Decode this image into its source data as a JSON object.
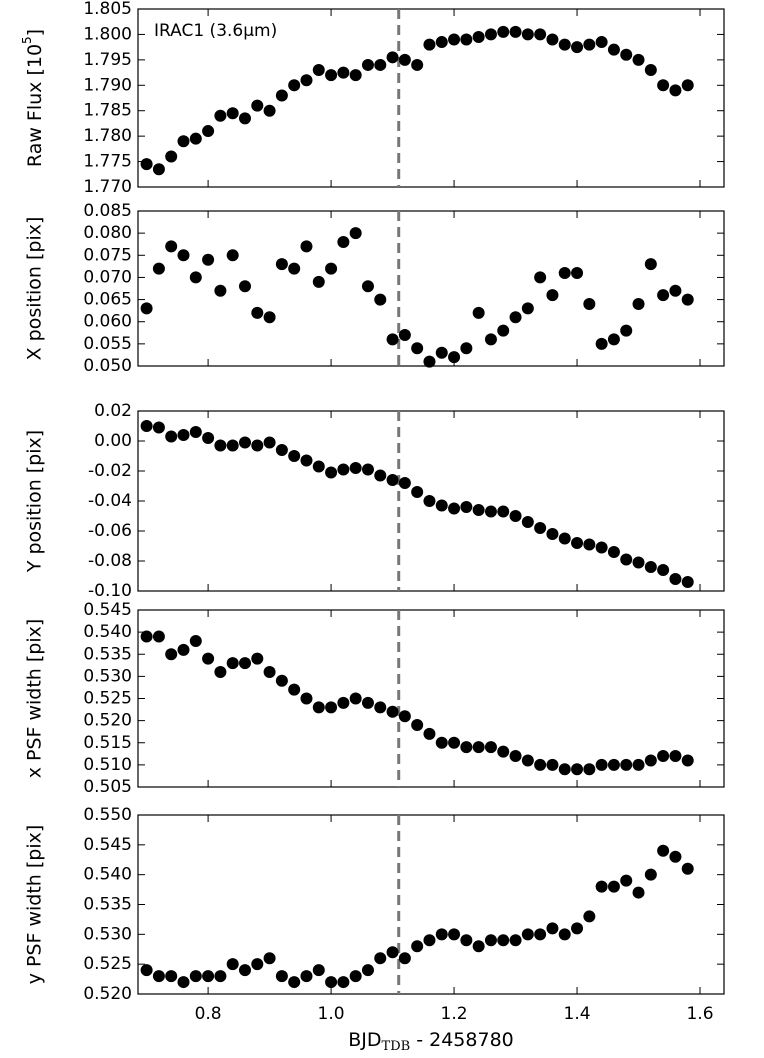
{
  "chart_data": [
    {
      "type": "scatter",
      "ylabel": {
        "text": "Raw Flux [10",
        "sup": "5",
        "rest": "]"
      },
      "annotation": "IRAC1 (3.6μm)",
      "color": "#000000",
      "vline": 1.11,
      "xlim": [
        0.686,
        1.639
      ],
      "xticks": [
        0.8,
        {
          "value": 1.0,
          "label": "1.0"
        },
        1.2,
        1.4,
        1.6
      ],
      "ylim": [
        1.77,
        1.805
      ],
      "yticks": [
        1.805,
        {
          "value": 1.8,
          "label": "1.800"
        },
        1.795,
        {
          "value": 1.79,
          "label": "1.790"
        },
        1.785,
        {
          "value": 1.78,
          "label": "1.780"
        },
        1.775,
        {
          "value": 1.77,
          "label": "1.770"
        }
      ],
      "x": [
        0.7,
        0.72,
        0.74,
        0.76,
        0.78,
        0.8,
        0.82,
        0.84,
        0.86,
        0.88,
        0.9,
        0.92,
        0.94,
        0.96,
        0.98,
        1.0,
        1.02,
        1.04,
        1.06,
        1.08,
        1.1,
        1.12,
        1.14,
        1.16,
        1.18,
        1.2,
        1.22,
        1.24,
        1.26,
        1.28,
        1.3,
        1.32,
        1.34,
        1.36,
        1.38,
        1.4,
        1.42,
        1.44,
        1.46,
        1.48,
        1.5,
        1.52,
        1.54,
        1.56,
        1.58
      ],
      "values": [
        1.7745,
        1.7735,
        1.776,
        1.779,
        1.7795,
        1.781,
        1.784,
        1.7845,
        1.7835,
        1.786,
        1.785,
        1.788,
        1.79,
        1.791,
        1.793,
        1.792,
        1.7925,
        1.792,
        1.794,
        1.794,
        1.7955,
        1.795,
        1.794,
        1.798,
        1.7985,
        1.799,
        1.799,
        1.7995,
        1.8,
        1.8005,
        1.8005,
        1.8,
        1.8,
        1.799,
        1.798,
        1.7975,
        1.798,
        1.7985,
        1.797,
        1.796,
        1.795,
        1.793,
        1.79,
        1.789,
        1.79
      ]
    },
    {
      "type": "scatter",
      "ylabel": "X position [pix]",
      "color": "#000000",
      "vline": 1.11,
      "xlim": [
        0.686,
        1.639
      ],
      "xticks": [
        0.8,
        {
          "value": 1.0,
          "label": "1.0"
        },
        1.2,
        1.4,
        1.6
      ],
      "ylim": [
        0.05,
        0.085
      ],
      "yticks": [
        0.085,
        {
          "value": 0.08,
          "label": "0.080"
        },
        0.075,
        {
          "value": 0.07,
          "label": "0.070"
        },
        0.065,
        {
          "value": 0.06,
          "label": "0.060"
        },
        0.055,
        {
          "value": 0.05,
          "label": "0.050"
        }
      ],
      "x": [
        0.7,
        0.72,
        0.74,
        0.76,
        0.78,
        0.8,
        0.82,
        0.84,
        0.86,
        0.88,
        0.9,
        0.92,
        0.94,
        0.96,
        0.98,
        1.0,
        1.02,
        1.04,
        1.06,
        1.08,
        1.1,
        1.12,
        1.14,
        1.16,
        1.18,
        1.2,
        1.22,
        1.24,
        1.26,
        1.28,
        1.3,
        1.32,
        1.34,
        1.36,
        1.38,
        1.4,
        1.42,
        1.44,
        1.46,
        1.48,
        1.5,
        1.52,
        1.54,
        1.56,
        1.58
      ],
      "values": [
        0.063,
        0.072,
        0.077,
        0.075,
        0.07,
        0.074,
        0.067,
        0.075,
        0.068,
        0.062,
        0.061,
        0.073,
        0.072,
        0.077,
        0.069,
        0.072,
        0.078,
        0.08,
        0.068,
        0.065,
        0.056,
        0.057,
        0.054,
        0.051,
        0.053,
        0.052,
        0.054,
        0.062,
        0.056,
        0.058,
        0.061,
        0.063,
        0.07,
        0.066,
        0.071,
        0.071,
        0.064,
        0.055,
        0.056,
        0.058,
        0.064,
        0.073,
        0.066,
        0.067,
        0.065
      ]
    },
    {
      "type": "scatter",
      "ylabel": "Y position [pix]",
      "color": "#000000",
      "vline": 1.11,
      "xlim": [
        0.686,
        1.639
      ],
      "xticks": [
        0.8,
        {
          "value": 1.0,
          "label": "1.0"
        },
        1.2,
        1.4,
        1.6
      ],
      "ylim": [
        -0.1,
        0.02
      ],
      "yticks": [
        0.02,
        {
          "value": 0,
          "label": "0.00"
        },
        -0.02,
        -0.04,
        -0.06,
        -0.08,
        {
          "value": -0.1,
          "label": "-0.10"
        }
      ],
      "x": [
        0.7,
        0.72,
        0.74,
        0.76,
        0.78,
        0.8,
        0.82,
        0.84,
        0.86,
        0.88,
        0.9,
        0.92,
        0.94,
        0.96,
        0.98,
        1.0,
        1.02,
        1.04,
        1.06,
        1.08,
        1.1,
        1.12,
        1.14,
        1.16,
        1.18,
        1.2,
        1.22,
        1.24,
        1.26,
        1.28,
        1.3,
        1.32,
        1.34,
        1.36,
        1.38,
        1.4,
        1.42,
        1.44,
        1.46,
        1.48,
        1.5,
        1.52,
        1.54,
        1.56,
        1.58
      ],
      "values": [
        0.01,
        0.009,
        0.003,
        0.004,
        0.006,
        0.002,
        -0.003,
        -0.003,
        -0.001,
        -0.003,
        -0.001,
        -0.006,
        -0.01,
        -0.013,
        -0.017,
        -0.021,
        -0.019,
        -0.018,
        -0.019,
        -0.023,
        -0.026,
        -0.028,
        -0.034,
        -0.04,
        -0.043,
        -0.045,
        -0.044,
        -0.046,
        -0.047,
        -0.047,
        -0.05,
        -0.054,
        -0.058,
        -0.062,
        -0.065,
        -0.068,
        -0.069,
        -0.071,
        -0.074,
        -0.079,
        -0.081,
        -0.084,
        -0.086,
        -0.092,
        -0.094
      ]
    },
    {
      "type": "scatter",
      "ylabel": "x PSF width [pix]",
      "color": "#000000",
      "vline": 1.11,
      "xlim": [
        0.686,
        1.639
      ],
      "xticks": [
        0.8,
        {
          "value": 1.0,
          "label": "1.0"
        },
        1.2,
        1.4,
        1.6
      ],
      "ylim": [
        0.505,
        0.545
      ],
      "yticks": [
        0.545,
        {
          "value": 0.54,
          "label": "0.540"
        },
        0.535,
        {
          "value": 0.53,
          "label": "0.530"
        },
        0.525,
        {
          "value": 0.52,
          "label": "0.520"
        },
        0.515,
        {
          "value": 0.51,
          "label": "0.510"
        },
        0.505
      ],
      "x": [
        0.7,
        0.72,
        0.74,
        0.76,
        0.78,
        0.8,
        0.82,
        0.84,
        0.86,
        0.88,
        0.9,
        0.92,
        0.94,
        0.96,
        0.98,
        1.0,
        1.02,
        1.04,
        1.06,
        1.08,
        1.1,
        1.12,
        1.14,
        1.16,
        1.18,
        1.2,
        1.22,
        1.24,
        1.26,
        1.28,
        1.3,
        1.32,
        1.34,
        1.36,
        1.38,
        1.4,
        1.42,
        1.44,
        1.46,
        1.48,
        1.5,
        1.52,
        1.54,
        1.56,
        1.58
      ],
      "values": [
        0.539,
        0.539,
        0.535,
        0.536,
        0.538,
        0.534,
        0.531,
        0.533,
        0.533,
        0.534,
        0.531,
        0.529,
        0.527,
        0.525,
        0.523,
        0.523,
        0.524,
        0.525,
        0.524,
        0.523,
        0.522,
        0.521,
        0.519,
        0.517,
        0.515,
        0.515,
        0.514,
        0.514,
        0.514,
        0.513,
        0.512,
        0.511,
        0.51,
        0.51,
        0.509,
        0.509,
        0.509,
        0.51,
        0.51,
        0.51,
        0.51,
        0.511,
        0.512,
        0.512,
        0.511
      ]
    },
    {
      "type": "scatter",
      "ylabel": "y PSF width [pix]",
      "color": "#000000",
      "vline": 1.11,
      "xlabel": {
        "text": "BJD",
        "sub": "TDB",
        "rest": " - 2458780"
      },
      "xlim": [
        0.686,
        1.639
      ],
      "xticks": [
        0.8,
        {
          "value": 1.0,
          "label": "1.0"
        },
        1.2,
        1.4,
        1.6
      ],
      "ylim": [
        0.52,
        0.55
      ],
      "yticks": [
        {
          "value": 0.55,
          "label": "0.550"
        },
        0.545,
        {
          "value": 0.54,
          "label": "0.540"
        },
        0.535,
        {
          "value": 0.53,
          "label": "0.530"
        },
        0.525,
        {
          "value": 0.52,
          "label": "0.520"
        }
      ],
      "x": [
        0.7,
        0.72,
        0.74,
        0.76,
        0.78,
        0.8,
        0.82,
        0.84,
        0.86,
        0.88,
        0.9,
        0.92,
        0.94,
        0.96,
        0.98,
        1.0,
        1.02,
        1.04,
        1.06,
        1.08,
        1.1,
        1.12,
        1.14,
        1.16,
        1.18,
        1.2,
        1.22,
        1.24,
        1.26,
        1.28,
        1.3,
        1.32,
        1.34,
        1.36,
        1.38,
        1.4,
        1.42,
        1.44,
        1.46,
        1.48,
        1.5,
        1.52,
        1.54,
        1.56,
        1.58
      ],
      "values": [
        0.524,
        0.523,
        0.523,
        0.522,
        0.523,
        0.523,
        0.523,
        0.525,
        0.524,
        0.525,
        0.526,
        0.523,
        0.522,
        0.523,
        0.524,
        0.522,
        0.522,
        0.523,
        0.524,
        0.526,
        0.527,
        0.526,
        0.528,
        0.529,
        0.53,
        0.53,
        0.529,
        0.528,
        0.529,
        0.529,
        0.529,
        0.53,
        0.53,
        0.531,
        0.53,
        0.531,
        0.533,
        0.538,
        0.538,
        0.539,
        0.537,
        0.54,
        0.544,
        0.543,
        0.541
      ]
    }
  ]
}
